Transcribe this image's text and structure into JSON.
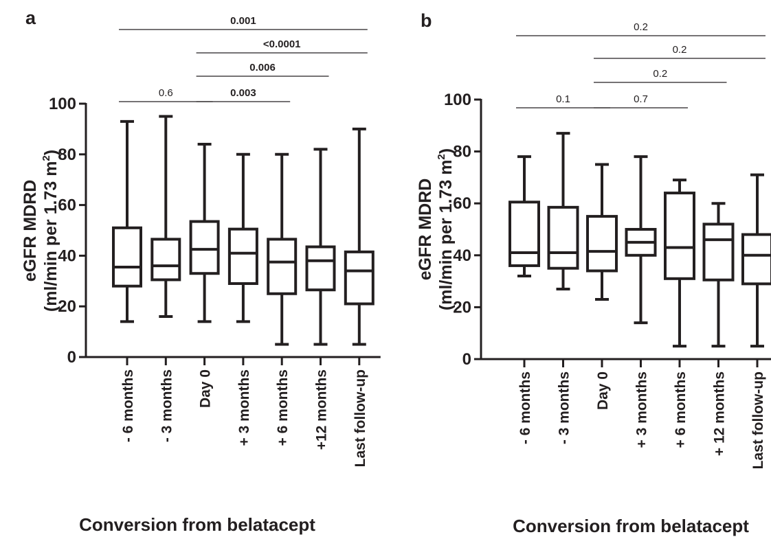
{
  "colors": {
    "ink": "#231f20",
    "background": "#ffffff"
  },
  "chart_data": [
    {
      "type": "boxplot",
      "panel": "a",
      "xlabel": "Conversion from belatacept",
      "ylabel_line1": "eGFR MDRD",
      "ylabel_line2": "(ml/min per 1.73 m",
      "ylabel_sup": "2",
      "ylabel_close": ")",
      "ylim": [
        0,
        100
      ],
      "yticks": [
        "0",
        "20",
        "40",
        "60",
        "80",
        "100"
      ],
      "categories": [
        "- 6 months",
        "- 3 months",
        "Day 0",
        "+ 3 months",
        "+ 6 months",
        "+12 months",
        "Last follow-up"
      ],
      "boxes": [
        {
          "min": 14,
          "q1": 28,
          "median": 35.5,
          "q3": 51,
          "max": 93
        },
        {
          "min": 16,
          "q1": 30.5,
          "median": 36,
          "q3": 46.5,
          "max": 95
        },
        {
          "min": 14,
          "q1": 33,
          "median": 42.5,
          "q3": 53.5,
          "max": 84
        },
        {
          "min": 14,
          "q1": 29,
          "median": 41,
          "q3": 50.5,
          "max": 80
        },
        {
          "min": 5,
          "q1": 25,
          "median": 37.5,
          "q3": 46.5,
          "max": 80
        },
        {
          "min": 5,
          "q1": 26.5,
          "median": 38,
          "q3": 43.5,
          "max": 82
        },
        {
          "min": 5,
          "q1": 21,
          "median": 34,
          "q3": 41.5,
          "max": 90
        }
      ],
      "comparisons": [
        {
          "from": 0,
          "to": 2,
          "label": "0.6",
          "bold": false
        },
        {
          "from": 2,
          "to": 4,
          "label": "0.003",
          "bold": true
        },
        {
          "from": 2,
          "to": 5,
          "label": "0.006",
          "bold": true
        },
        {
          "from": 2,
          "to": 6,
          "label": "<0.0001",
          "bold": true
        },
        {
          "from": 0,
          "to": 6,
          "label": "0.001",
          "bold": true
        }
      ]
    },
    {
      "type": "boxplot",
      "panel": "b",
      "xlabel": "Conversion from belatacept",
      "ylabel_line1": "eGFR MDRD",
      "ylabel_line2": "(ml/min per 1.73 m",
      "ylabel_sup": "2",
      "ylabel_close": ")",
      "ylim": [
        0,
        100
      ],
      "yticks": [
        "0",
        "20",
        "40",
        "60",
        "80",
        "100"
      ],
      "categories": [
        "- 6 months",
        "- 3 months",
        "Day 0",
        "+ 3 months",
        "+ 6 months",
        "+ 12 months",
        "Last follow-up"
      ],
      "boxes": [
        {
          "min": 32,
          "q1": 36,
          "median": 41,
          "q3": 60.5,
          "max": 78
        },
        {
          "min": 27,
          "q1": 35,
          "median": 41,
          "q3": 58.5,
          "max": 87
        },
        {
          "min": 23,
          "q1": 34,
          "median": 41.5,
          "q3": 55,
          "max": 75
        },
        {
          "min": 14,
          "q1": 40,
          "median": 45,
          "q3": 50,
          "max": 78
        },
        {
          "min": 5,
          "q1": 31,
          "median": 43,
          "q3": 64,
          "max": 69
        },
        {
          "min": 5,
          "q1": 30.5,
          "median": 46,
          "q3": 52,
          "max": 60
        },
        {
          "min": 5,
          "q1": 29,
          "median": 40,
          "q3": 48,
          "max": 71
        }
      ],
      "comparisons": [
        {
          "from": 0,
          "to": 2,
          "label": "0.1",
          "bold": false
        },
        {
          "from": 2,
          "to": 4,
          "label": "0.7",
          "bold": false
        },
        {
          "from": 2,
          "to": 5,
          "label": "0.2",
          "bold": false
        },
        {
          "from": 2,
          "to": 6,
          "label": "0.2",
          "bold": false
        },
        {
          "from": 0,
          "to": 6,
          "label": "0.2",
          "bold": false
        }
      ]
    }
  ]
}
